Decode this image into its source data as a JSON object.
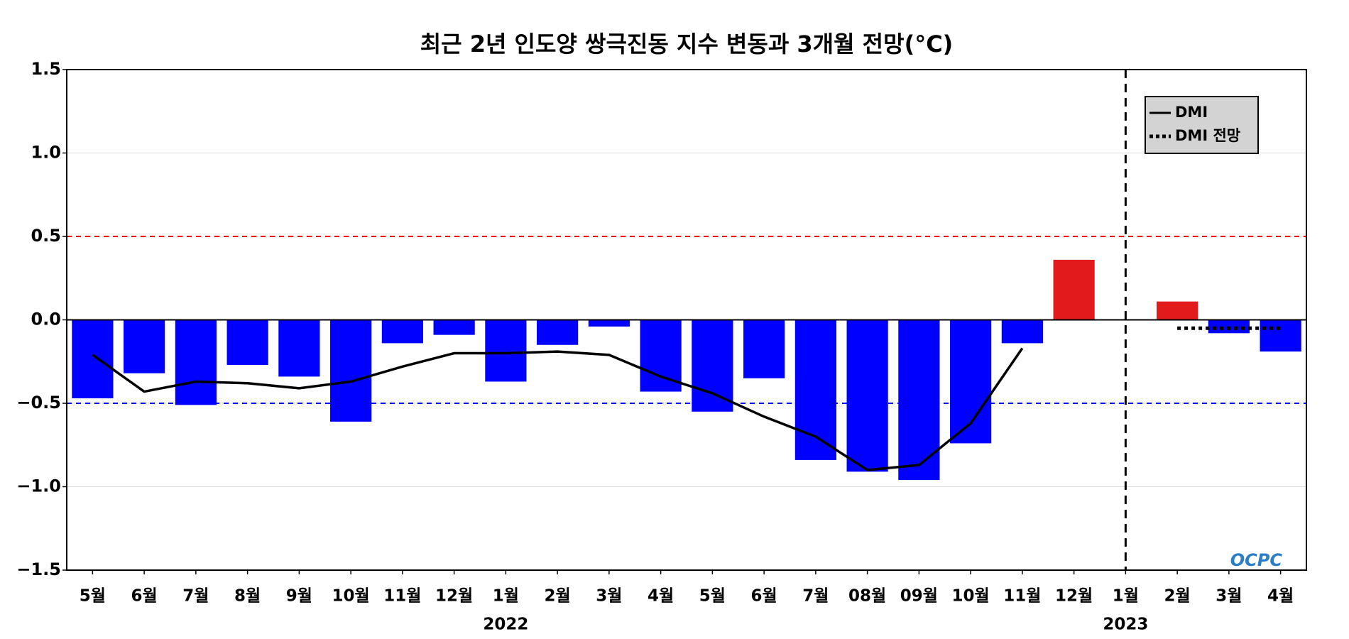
{
  "chart_data": {
    "type": "bar",
    "title": "최근 2년 인도양 쌍극진동 지수 변동과 3개월 전망(°C)",
    "categories": [
      "5월",
      "6월",
      "7월",
      "8월",
      "9월",
      "10월",
      "11월",
      "12월",
      "1월",
      "2월",
      "3월",
      "4월",
      "5월",
      "6월",
      "7월",
      "08월",
      "09월",
      "10월",
      "11월",
      "12월",
      "1월",
      "2월",
      "3월",
      "4월"
    ],
    "values": [
      -0.47,
      -0.32,
      -0.51,
      -0.27,
      -0.34,
      -0.61,
      -0.14,
      -0.09,
      -0.37,
      -0.15,
      -0.04,
      -0.43,
      -0.55,
      -0.35,
      -0.84,
      -0.91,
      -0.96,
      -0.74,
      -0.14,
      0.36,
      null,
      0.11,
      -0.08,
      -0.19
    ],
    "positive_color": "#e31a1c",
    "negative_color": "#0000ff",
    "series": [
      {
        "name": "DMI",
        "color": "#000000",
        "style": "solid",
        "values": [
          -0.21,
          -0.43,
          -0.37,
          -0.38,
          -0.41,
          -0.37,
          -0.28,
          -0.2,
          -0.2,
          -0.19,
          -0.21,
          -0.34,
          -0.44,
          -0.58,
          -0.7,
          -0.9,
          -0.87,
          -0.62,
          -0.17,
          null,
          null,
          null,
          null,
          null
        ]
      },
      {
        "name": "DMI 전망",
        "color": "#000000",
        "style": "dotted",
        "values": [
          null,
          null,
          null,
          null,
          null,
          null,
          null,
          null,
          null,
          null,
          null,
          null,
          null,
          null,
          null,
          null,
          null,
          null,
          null,
          null,
          null,
          -0.05,
          -0.05,
          -0.05
        ]
      }
    ],
    "hlines": [
      {
        "value": 0.5,
        "color": "#ff0000"
      },
      {
        "value": -0.5,
        "color": "#0000ff"
      }
    ],
    "year_labels": [
      {
        "label": "2022",
        "index": 8
      },
      {
        "label": "2023",
        "index": 20
      }
    ],
    "ylim": [
      -1.5,
      1.5
    ],
    "yticks": [
      {
        "value": -1.5,
        "label": "−1.5"
      },
      {
        "value": -1,
        "label": "−1.0"
      },
      {
        "value": -0.5,
        "label": "−0.5"
      },
      {
        "value": 0,
        "label": "0.0"
      },
      0.5,
      {
        "value": 1,
        "label": "1.0"
      },
      1.5
    ],
    "grid": true,
    "legend": "upper right",
    "watermark": "OCPC"
  }
}
